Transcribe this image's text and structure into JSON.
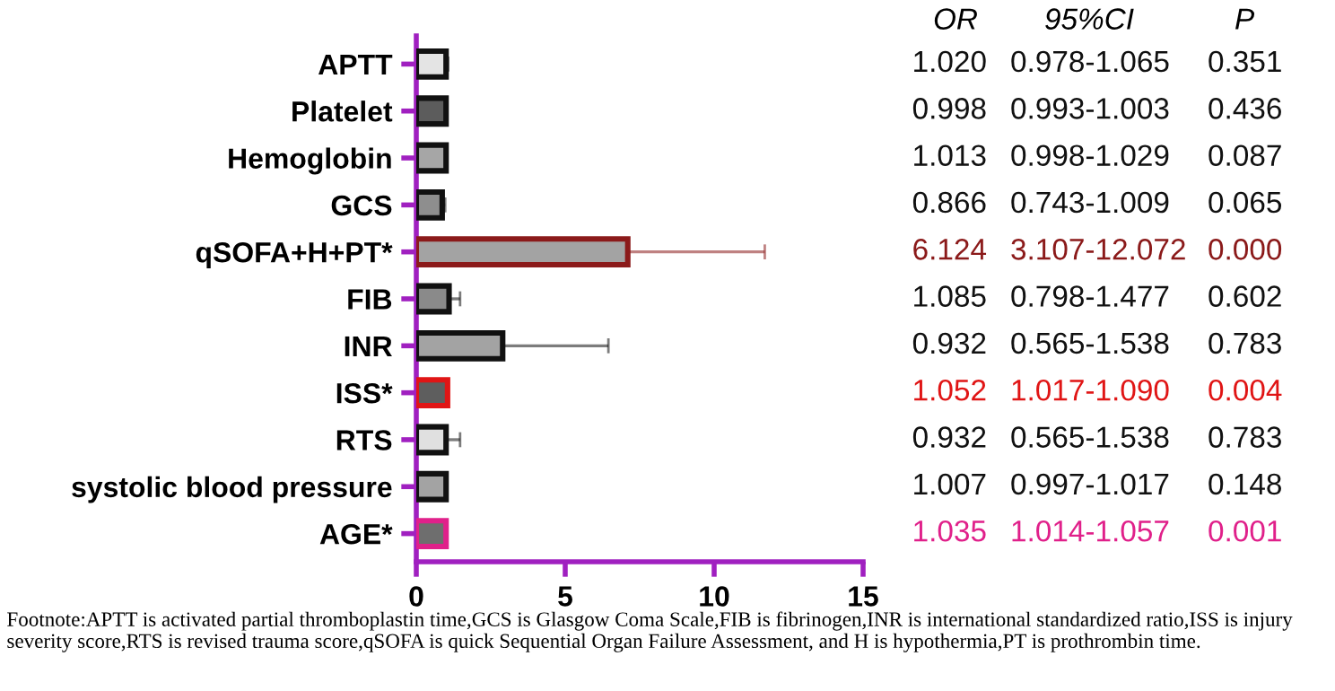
{
  "chart_data": [
    {
      "type": "bar",
      "orientation": "horizontal",
      "categories": [
        "APTT",
        "Platelet",
        "Hemoglobin",
        "GCS",
        "qSOFA+H+PT*",
        "FIB",
        "INR",
        "ISS*",
        "RTS",
        "systolic blood pressure",
        "AGE*"
      ],
      "values": [
        1.0,
        1.0,
        1.0,
        0.87,
        7.1,
        1.1,
        2.9,
        1.05,
        1.0,
        1.0,
        1.0
      ],
      "colors": [
        "#e4e4e4",
        "#5c5c5c",
        "#a6a6a6",
        "#8e8e8e",
        "#a3a3a3",
        "#8a8a8a",
        "#a3a3a3",
        "#5e5e5e",
        "#e0e0e0",
        "#a3a3a3",
        "#6e6e6e"
      ],
      "errors": [
        [
          1.0,
          1.07
        ],
        null,
        null,
        [
          0.87,
          0.97
        ],
        [
          7.1,
          11.7
        ],
        [
          1.1,
          1.47
        ],
        [
          2.9,
          6.45
        ],
        null,
        [
          1.0,
          1.47
        ],
        null,
        null
      ],
      "xlim": [
        0,
        15
      ],
      "xticks": [
        0,
        5,
        10,
        15
      ],
      "grid": false,
      "annotations": [
        "Footnote:APTT is activated partial thromboplastin time,GCS is Glasgow Coma Scale,FIB is fibrinogen,INR is international standardized ratio,ISS is injury severity score,RTS is revised trauma score,qSOFA is quick Sequential Organ Failure Assessment, and H is hypothermia,PT is prothrombin time."
      ]
    },
    {
      "type": "other",
      "categories": [
        "OR",
        "95%CI",
        "P"
      ],
      "cell_labels": [
        [
          "1.020",
          "0.978-1.065",
          "0.351"
        ],
        [
          "0.998",
          "0.993-1.003",
          "0.436"
        ],
        [
          "1.013",
          "0.998-1.029",
          "0.087"
        ],
        [
          "0.866",
          "0.743-1.009",
          "0.065"
        ],
        [
          "6.124",
          "3.107-12.072",
          "0.000"
        ],
        [
          "1.085",
          "0.798-1.477",
          "0.602"
        ],
        [
          "0.932",
          "0.565-1.538",
          "0.783"
        ],
        [
          "1.052",
          "1.017-1.090",
          "0.004"
        ],
        [
          "0.932",
          "0.565-1.538",
          "0.783"
        ],
        [
          "1.007",
          "0.997-1.017",
          "0.148"
        ],
        [
          "1.035",
          "1.014-1.057",
          "0.001"
        ]
      ],
      "colors": [
        "#111111",
        "#111111",
        "#111111",
        "#111111",
        "#8b1a1a",
        "#111111",
        "#111111",
        "#e01515",
        "#111111",
        "#111111",
        "#e0208a"
      ]
    }
  ]
}
